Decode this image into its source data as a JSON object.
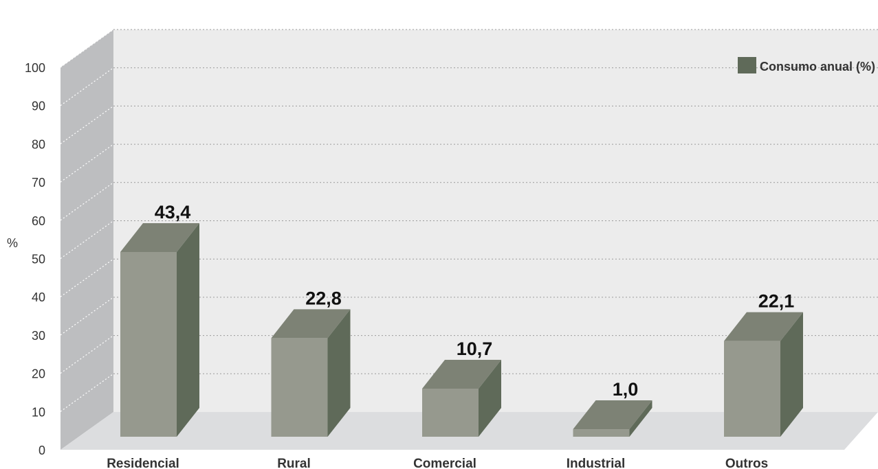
{
  "chart_data": {
    "type": "bar",
    "categories": [
      "Residencial",
      "Rural",
      "Comercial",
      "Industrial",
      "Outros"
    ],
    "series": [
      {
        "name": "Consumo anual (%)",
        "values": [
          43.4,
          22.8,
          10.7,
          1.0,
          22.1
        ]
      }
    ],
    "value_labels": [
      "43,4",
      "22,8",
      "10,7",
      "1,0",
      "22,1"
    ],
    "yticks": [
      "0",
      "10",
      "20",
      "30",
      "40",
      "50",
      "60",
      "70",
      "80",
      "90",
      "100"
    ],
    "ylabel": "%",
    "ylim": [
      0,
      100
    ],
    "grid": true,
    "legend_position": "top-right",
    "colors": {
      "bar_front": "#96998e",
      "bar_top": "#7d8275",
      "bar_side": "#5f6a59",
      "legend_swatch": "#5f6a59",
      "wall_back": "#ececec",
      "wall_side": "#bdbec0",
      "floor": "#dcdddf"
    }
  }
}
